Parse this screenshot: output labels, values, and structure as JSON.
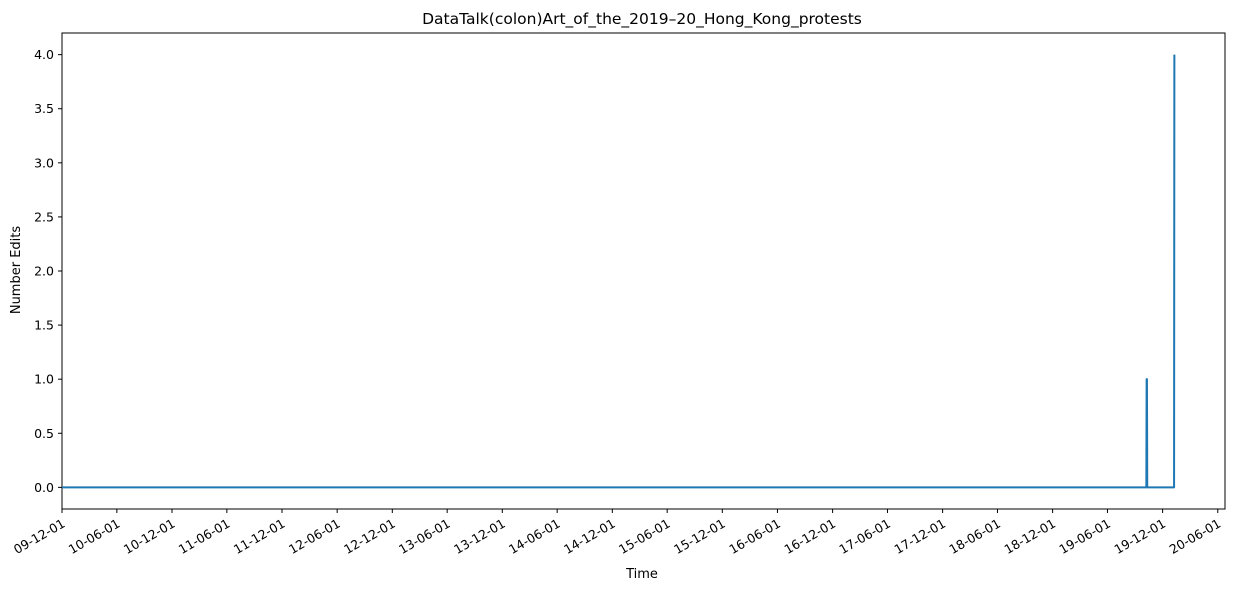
{
  "chart_data": {
    "type": "line",
    "title": "DataTalk(colon)Art_of_the_2019–20_Hong_Kong_protests",
    "xlabel": "Time",
    "ylabel": "Number Edits",
    "grid": false,
    "legend": "none",
    "line_color": "#1f77b4",
    "x_range": [
      "2009-12-01",
      "2020-06-25"
    ],
    "ylim": [
      -0.2,
      4.2
    ],
    "y_ticks": [
      0.0,
      0.5,
      1.0,
      1.5,
      2.0,
      2.5,
      3.0,
      3.5,
      4.0
    ],
    "y_tick_labels": [
      "0.0",
      "0.5",
      "1.0",
      "1.5",
      "2.0",
      "2.5",
      "3.0",
      "3.5",
      "4.0"
    ],
    "x_ticks": [
      "2009-12-01",
      "2010-06-01",
      "2010-12-01",
      "2011-06-01",
      "2011-12-01",
      "2012-06-01",
      "2012-12-01",
      "2013-06-01",
      "2013-12-01",
      "2014-06-01",
      "2014-12-01",
      "2015-06-01",
      "2015-12-01",
      "2016-06-01",
      "2016-12-01",
      "2017-06-01",
      "2017-12-01",
      "2018-06-01",
      "2018-12-01",
      "2019-06-01",
      "2019-12-01",
      "2020-06-01"
    ],
    "x_tick_labels": [
      "09-12-01",
      "10-06-01",
      "10-12-01",
      "11-06-01",
      "11-12-01",
      "12-06-01",
      "12-12-01",
      "13-06-01",
      "13-12-01",
      "14-06-01",
      "14-12-01",
      "15-06-01",
      "15-12-01",
      "16-06-01",
      "16-12-01",
      "17-06-01",
      "17-12-01",
      "18-06-01",
      "18-12-01",
      "19-06-01",
      "19-12-01",
      "20-06-01"
    ],
    "series": [
      {
        "x": [
          "2009-12-01",
          "2019-10-08",
          "2019-10-09",
          "2019-10-10",
          "2019-10-11",
          "2020-01-08",
          "2020-01-09"
        ],
        "y": [
          0,
          0,
          1,
          1,
          0,
          0,
          4
        ]
      }
    ]
  }
}
